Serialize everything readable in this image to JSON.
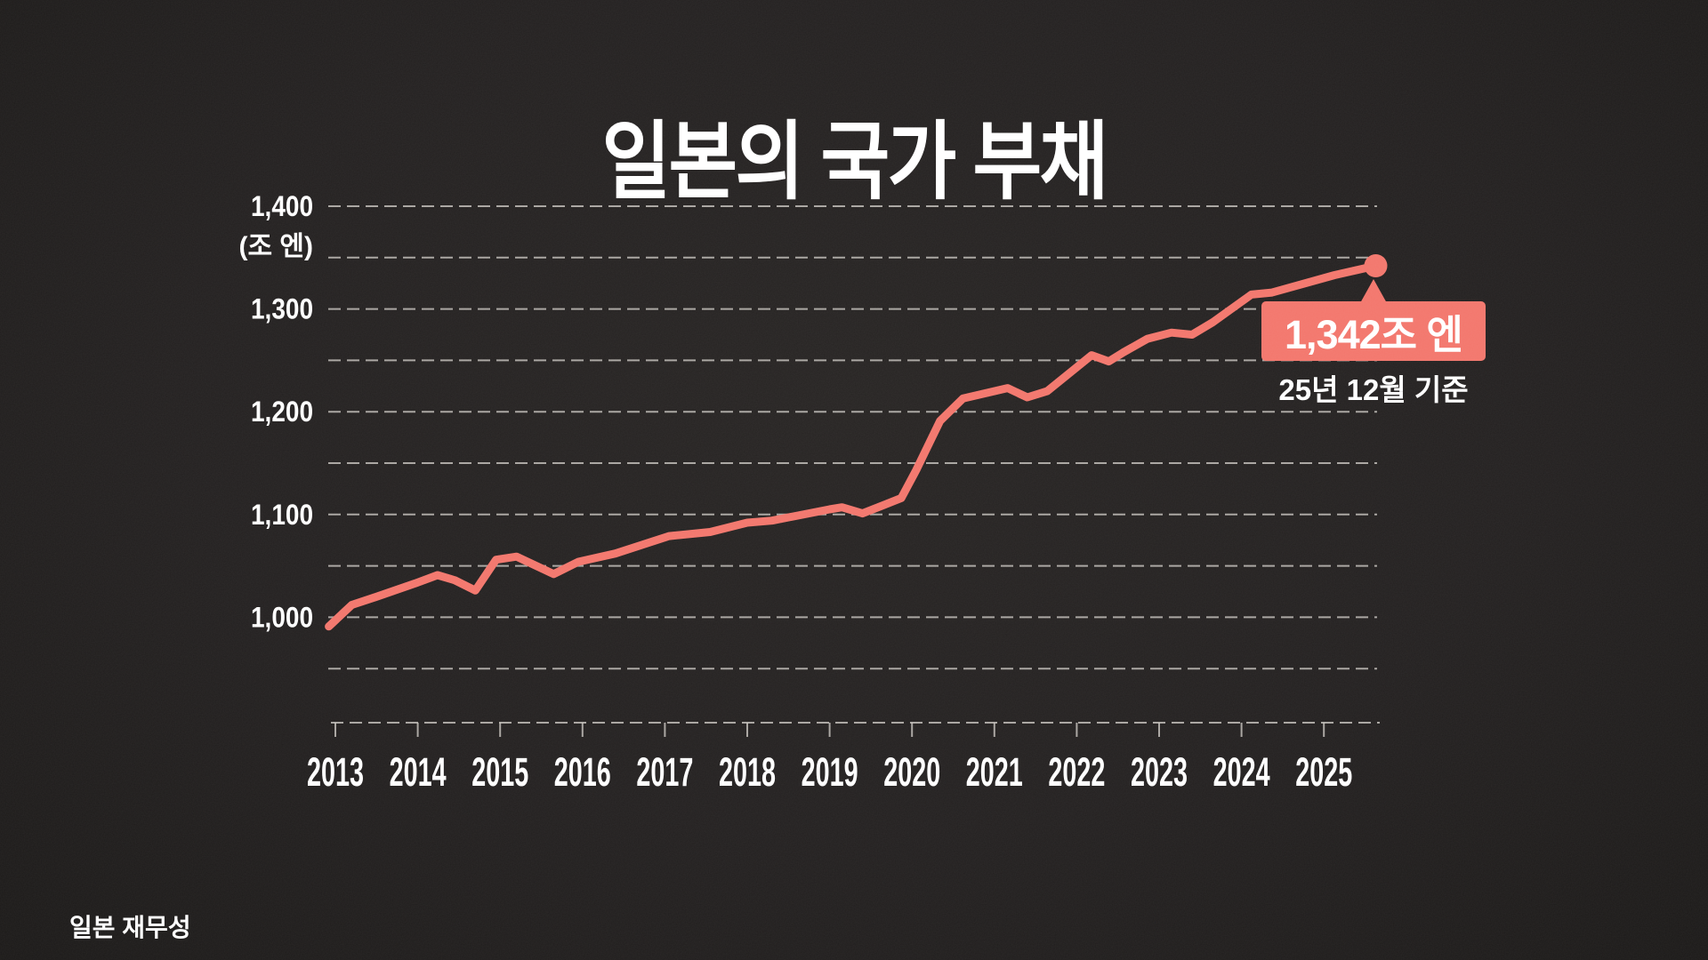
{
  "title": "일본의 국가 부채",
  "source": "일본 재무성",
  "callout": {
    "value_label": "1,342조 엔",
    "date_label": "25년 12월 기준"
  },
  "y_axis": {
    "unit_label": "(조 엔)",
    "tick_labels": [
      "1,400",
      "1,300",
      "1,200",
      "1,100",
      "1,000"
    ],
    "tick_values": [
      1400,
      1300,
      1200,
      1100,
      1000
    ]
  },
  "x_axis": {
    "tick_labels": [
      "2013",
      "2014",
      "2015",
      "2016",
      "2017",
      "2018",
      "2019",
      "2020",
      "2021",
      "2022",
      "2023",
      "2024",
      "2025"
    ]
  },
  "colors": {
    "background": "#232020",
    "accent": "#f3766c",
    "grid": "#cbc7c2",
    "text": "#ffffff"
  },
  "chart_data": {
    "type": "line",
    "title": "일본의 국가 부채",
    "ylabel": "(조 엔)",
    "xlabel": "",
    "legend": false,
    "grid": "dashed-horizontal",
    "x_base": 2013,
    "y_top": 1400,
    "ylim": [
      950,
      1400
    ],
    "xlim": [
      2012.9,
      2025.75
    ],
    "gridline_values": [
      1400,
      1350,
      1300,
      1250,
      1200,
      1150,
      1100,
      1050,
      1000,
      950
    ],
    "x_ticks": [
      2013,
      2014,
      2015,
      2016,
      2017,
      2018,
      2019,
      2020,
      2021,
      2022,
      2023,
      2024,
      2025
    ],
    "points": [
      [
        2012.92,
        991
      ],
      [
        2013.2,
        1012
      ],
      [
        2013.5,
        1020
      ],
      [
        2013.97,
        1033
      ],
      [
        2014.24,
        1041
      ],
      [
        2014.45,
        1036
      ],
      [
        2014.7,
        1026
      ],
      [
        2014.95,
        1056
      ],
      [
        2015.2,
        1059
      ],
      [
        2015.65,
        1042
      ],
      [
        2015.95,
        1054
      ],
      [
        2016.4,
        1062
      ],
      [
        2017.05,
        1079
      ],
      [
        2017.55,
        1083
      ],
      [
        2018.0,
        1092
      ],
      [
        2018.3,
        1094
      ],
      [
        2019.0,
        1105
      ],
      [
        2019.15,
        1107
      ],
      [
        2019.4,
        1101
      ],
      [
        2019.65,
        1109
      ],
      [
        2019.87,
        1116
      ],
      [
        2020.05,
        1143
      ],
      [
        2020.34,
        1191
      ],
      [
        2020.62,
        1213
      ],
      [
        2021.16,
        1223
      ],
      [
        2021.4,
        1214
      ],
      [
        2021.64,
        1220
      ],
      [
        2022.18,
        1255
      ],
      [
        2022.39,
        1249
      ],
      [
        2022.57,
        1258
      ],
      [
        2022.86,
        1271
      ],
      [
        2023.15,
        1277
      ],
      [
        2023.4,
        1275
      ],
      [
        2023.65,
        1287
      ],
      [
        2024.12,
        1314
      ],
      [
        2024.37,
        1316
      ],
      [
        2025.13,
        1333
      ],
      [
        2025.63,
        1342
      ]
    ],
    "latest_point": {
      "value": 1342,
      "label": "1,342조 엔",
      "as_of": "25년 12월 기준"
    },
    "source": "일본 재무성"
  }
}
